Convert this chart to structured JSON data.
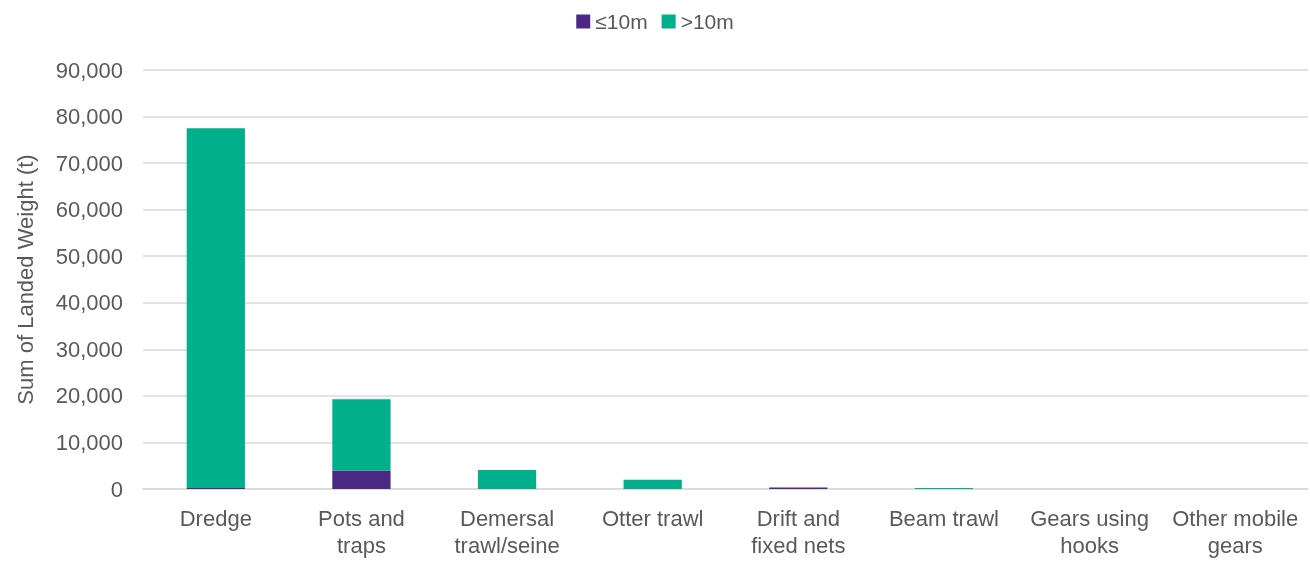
{
  "chart_data": {
    "type": "bar",
    "stacked": true,
    "categories": [
      "Dredge",
      "Pots and traps",
      "Demersal trawl/seine",
      "Otter trawl",
      "Drift and fixed nets",
      "Beam trawl",
      "Gears using hooks",
      "Other mobile gears"
    ],
    "series": [
      {
        "name": "≤10m",
        "color": "#4b2884",
        "values": [
          200,
          4000,
          0,
          0,
          300,
          0,
          0,
          0
        ]
      },
      {
        "name": ">10m",
        "color": "#00b08d",
        "values": [
          77300,
          15300,
          4100,
          2000,
          0,
          200,
          0,
          0
        ]
      }
    ],
    "ylabel": "Sum of Landed Weight (t)",
    "ylim": [
      0,
      90000
    ],
    "yticks": [
      {
        "value": 0,
        "label": "0"
      },
      {
        "value": 10000,
        "label": "10,000"
      },
      {
        "value": 20000,
        "label": "20,000"
      },
      {
        "value": 30000,
        "label": "30,000"
      },
      {
        "value": 40000,
        "label": "40,000"
      },
      {
        "value": 50000,
        "label": "50,000"
      },
      {
        "value": 60000,
        "label": "60,000"
      },
      {
        "value": 70000,
        "label": "70,000"
      },
      {
        "value": 80000,
        "label": "80,000"
      },
      {
        "value": 90000,
        "label": "90,000"
      }
    ],
    "grid": "y",
    "legend": "top"
  }
}
